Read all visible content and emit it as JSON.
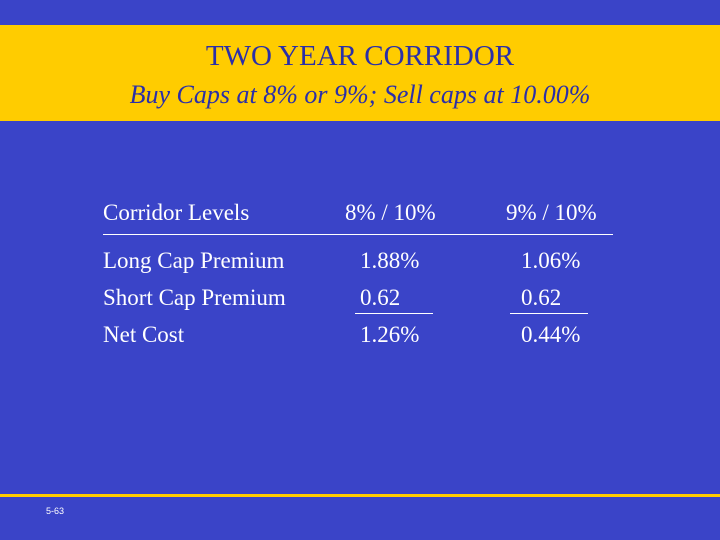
{
  "header": {
    "title": "TWO YEAR CORRIDOR",
    "subtitle": "Buy Caps at 8% or 9%; Sell caps at 10.00%"
  },
  "table": {
    "headers": [
      "Corridor Levels",
      "8% / 10%",
      "9% / 10%"
    ],
    "rows": [
      {
        "label": "Long Cap Premium",
        "col1": "1.88%",
        "col2": "1.06%"
      },
      {
        "label": "Short Cap Premium",
        "col1": "0.62",
        "col2": "0.62"
      },
      {
        "label": "Net Cost",
        "col1": "1.26%",
        "col2": "0.44%"
      }
    ]
  },
  "footer": {
    "slide_number": "5-63"
  },
  "colors": {
    "background": "#3a44c8",
    "band": "#ffcc00",
    "title_text": "#2b2fa8",
    "body_text": "#ffffff"
  }
}
